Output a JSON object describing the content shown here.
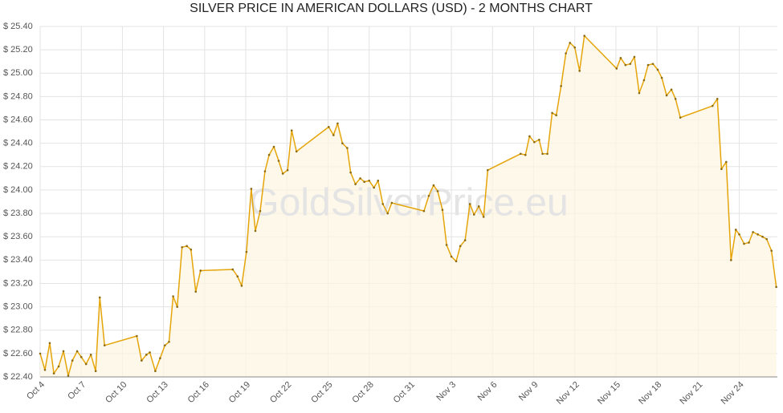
{
  "chart_data": {
    "type": "line",
    "title": "SILVER PRICE IN AMERICAN DOLLARS (USD) - 2 MONTHS CHART",
    "watermark": "GoldSilverPrice.eu",
    "grid": true,
    "xlim": [
      0,
      53.78
    ],
    "ylim": [
      22.4,
      25.4
    ],
    "xticks": [
      {
        "value": 0,
        "label": "Oct 4"
      },
      {
        "value": 3,
        "label": "Oct 7"
      },
      {
        "value": 6,
        "label": "Oct 10"
      },
      {
        "value": 9,
        "label": "Oct 13"
      },
      {
        "value": 12,
        "label": "Oct 16"
      },
      {
        "value": 15,
        "label": "Oct 19"
      },
      {
        "value": 18,
        "label": "Oct 22"
      },
      {
        "value": 21,
        "label": "Oct 25"
      },
      {
        "value": 24,
        "label": "Oct 28"
      },
      {
        "value": 27,
        "label": "Oct 31"
      },
      {
        "value": 30,
        "label": "Nov 3"
      },
      {
        "value": 33,
        "label": "Nov 6"
      },
      {
        "value": 36,
        "label": "Nov 9"
      },
      {
        "value": 39,
        "label": "Nov 12"
      },
      {
        "value": 42,
        "label": "Nov 15"
      },
      {
        "value": 45,
        "label": "Nov 18"
      },
      {
        "value": 48,
        "label": "Nov 21"
      },
      {
        "value": 51,
        "label": "Nov 24"
      }
    ],
    "yticks": [
      {
        "value": 22.4,
        "label": "$ 22.40"
      },
      {
        "value": 22.6,
        "label": "$ 22.60"
      },
      {
        "value": 22.8,
        "label": "$ 22.80"
      },
      {
        "value": 23.0,
        "label": "$ 23.00"
      },
      {
        "value": 23.2,
        "label": "$ 23.20"
      },
      {
        "value": 23.4,
        "label": "$ 23.40"
      },
      {
        "value": 23.6,
        "label": "$ 23.60"
      },
      {
        "value": 23.8,
        "label": "$ 23.80"
      },
      {
        "value": 24.0,
        "label": "$ 24.00"
      },
      {
        "value": 24.2,
        "label": "$ 24.20"
      },
      {
        "value": 24.4,
        "label": "$ 24.40"
      },
      {
        "value": 24.6,
        "label": "$ 24.60"
      },
      {
        "value": 24.8,
        "label": "$ 24.80"
      },
      {
        "value": 25.0,
        "label": "$ 25.00"
      },
      {
        "value": 25.2,
        "label": "$ 25.20"
      },
      {
        "value": 25.4,
        "label": "$ 25.40"
      }
    ],
    "color": "#e5a50a",
    "fill_color": "#fcf5e2",
    "x": [
      0,
      0.35,
      0.7,
      1.0,
      1.35,
      1.7,
      2.05,
      2.35,
      2.7,
      3.0,
      3.35,
      3.7,
      4.05,
      4.35,
      4.7,
      7.05,
      7.4,
      7.75,
      8.0,
      8.4,
      8.75,
      9.1,
      9.4,
      9.7,
      10.0,
      10.35,
      10.7,
      11.0,
      11.35,
      11.7,
      14.05,
      14.4,
      14.7,
      15.05,
      15.4,
      15.7,
      16.05,
      16.4,
      16.7,
      17.05,
      17.4,
      17.7,
      18.05,
      18.35,
      18.7,
      21.05,
      21.4,
      21.7,
      22.05,
      22.4,
      22.65,
      23.0,
      23.35,
      23.65,
      24.0,
      24.35,
      24.65,
      25.0,
      25.35,
      25.65,
      28.0,
      28.35,
      28.7,
      29.0,
      29.35,
      29.65,
      30.0,
      30.35,
      30.65,
      31.0,
      31.35,
      31.65,
      32.0,
      32.35,
      32.65,
      35.05,
      35.4,
      35.7,
      36.05,
      36.4,
      36.65,
      37.0,
      37.35,
      37.65,
      38.0,
      38.35,
      38.65,
      39.0,
      39.35,
      39.7,
      42.05,
      42.35,
      42.7,
      43.05,
      43.35,
      43.7,
      44.05,
      44.35,
      44.7,
      45.05,
      45.35,
      45.7,
      46.05,
      46.35,
      46.7,
      49.05,
      49.4,
      49.7,
      50.05,
      50.4,
      50.75,
      51.0,
      51.35,
      51.7,
      52.0,
      52.35,
      52.7,
      53.0,
      53.35,
      53.7
    ],
    "values": [
      22.6,
      22.46,
      22.69,
      22.43,
      22.49,
      22.62,
      22.41,
      22.54,
      22.62,
      22.57,
      22.51,
      22.59,
      22.45,
      23.08,
      22.67,
      22.75,
      22.54,
      22.59,
      22.61,
      22.45,
      22.56,
      22.67,
      22.7,
      23.09,
      23.0,
      23.51,
      23.52,
      23.49,
      23.13,
      23.31,
      23.32,
      23.26,
      23.18,
      23.47,
      24.01,
      23.65,
      23.82,
      24.16,
      24.3,
      24.37,
      24.25,
      24.14,
      24.17,
      24.51,
      24.33,
      24.54,
      24.47,
      24.57,
      24.4,
      24.36,
      24.15,
      24.05,
      24.1,
      24.07,
      24.08,
      24.02,
      24.08,
      23.88,
      23.8,
      23.89,
      23.82,
      23.95,
      24.04,
      23.99,
      23.83,
      23.53,
      23.43,
      23.39,
      23.52,
      23.57,
      23.88,
      23.79,
      23.86,
      23.77,
      24.17,
      24.31,
      24.3,
      24.46,
      24.41,
      24.43,
      24.31,
      24.31,
      24.66,
      24.64,
      24.89,
      25.17,
      25.26,
      25.22,
      25.02,
      25.32,
      25.04,
      25.13,
      25.07,
      25.08,
      25.14,
      24.83,
      24.94,
      25.07,
      25.08,
      25.03,
      24.96,
      24.81,
      24.86,
      24.78,
      24.62,
      24.72,
      24.78,
      24.18,
      24.24,
      23.4,
      23.66,
      23.62,
      23.54,
      23.55,
      23.64,
      23.62,
      23.6,
      23.58,
      23.48,
      23.17
    ]
  }
}
